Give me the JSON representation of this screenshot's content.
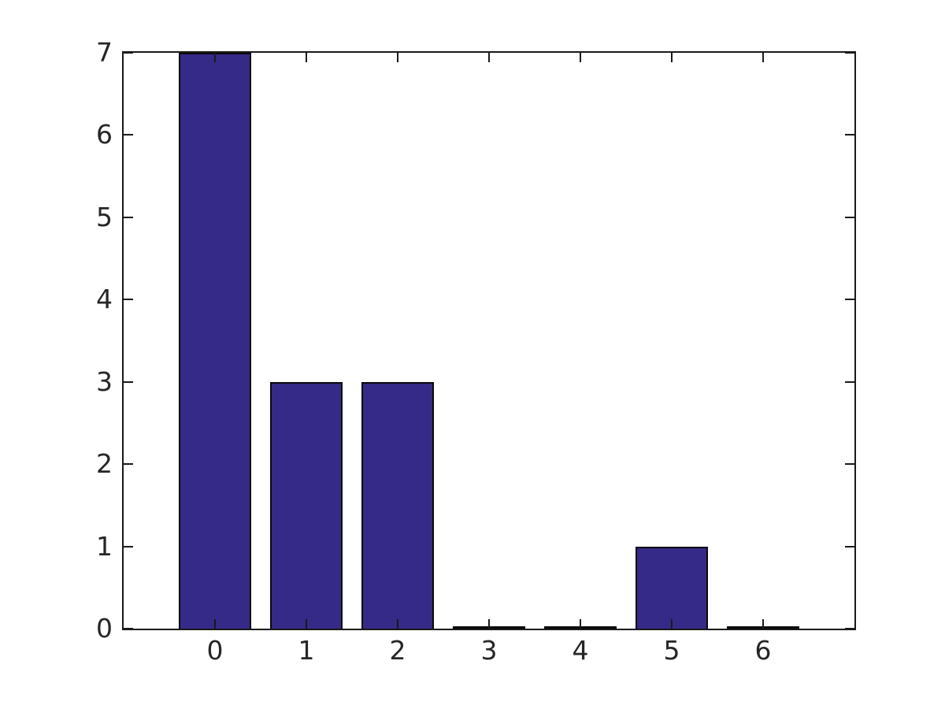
{
  "figure": {
    "background": "#ffffff",
    "title": ""
  },
  "chart_data": {
    "type": "bar",
    "categories": [
      "0",
      "1",
      "2",
      "3",
      "4",
      "5",
      "6"
    ],
    "values": [
      7,
      3,
      3,
      0,
      0,
      1,
      0
    ],
    "title": "",
    "xlabel": "",
    "ylabel": "",
    "xlim": [
      -1,
      7
    ],
    "ylim": [
      0,
      7
    ],
    "yticks": [
      "0",
      "1",
      "2",
      "3",
      "4",
      "5",
      "6",
      "7"
    ],
    "ytick_values": [
      0,
      1,
      2,
      3,
      4,
      5,
      6,
      7
    ],
    "bar_width_ratio": 0.8,
    "bar_color": "#352A87",
    "bar_edge_color": "#0a0a0a",
    "axis_color": "#1a1a1a",
    "tick_label_color": "#262626",
    "grid": false,
    "legend": null,
    "box": true,
    "tick_direction": "in"
  }
}
